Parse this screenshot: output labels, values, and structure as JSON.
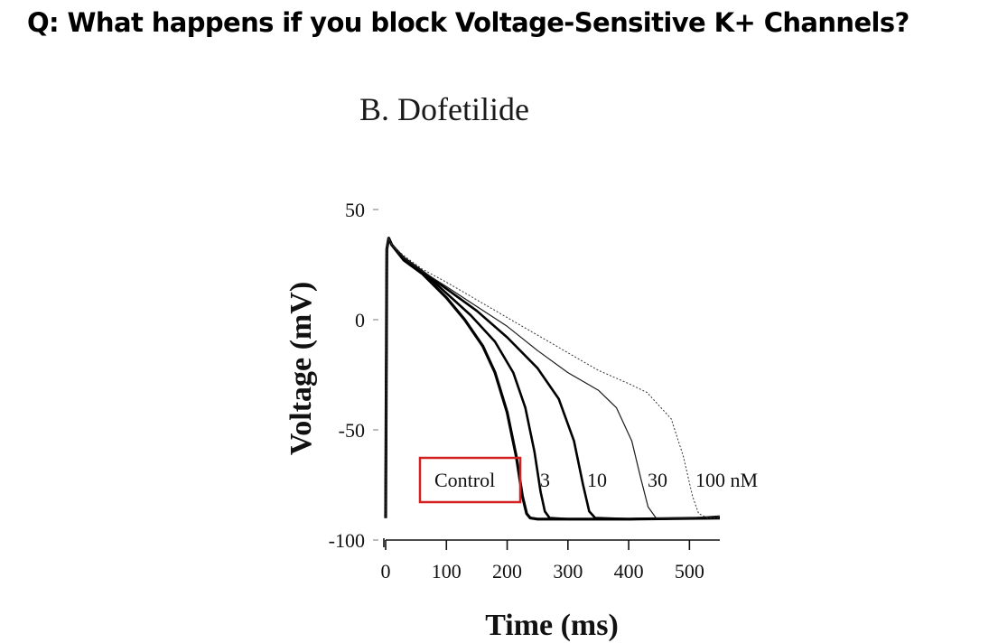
{
  "slide": {
    "question": "Q:  What happens if you block Voltage-Sensitive K+ Channels?"
  },
  "chart_data": {
    "type": "line",
    "title": "B. Dofetilide",
    "xlabel": "Time (ms)",
    "ylabel": "Voltage (mV)",
    "xlim": [
      0,
      550
    ],
    "ylim": [
      -100,
      50
    ],
    "xticks": [
      0,
      100,
      200,
      300,
      400,
      500
    ],
    "yticks": [
      50,
      0,
      -50,
      -100
    ],
    "grid": false,
    "highlight_color": "#d42020",
    "series": [
      {
        "name": "Control",
        "highlighted": true,
        "stroke": "#000000",
        "width": 3.2,
        "x": [
          0,
          2,
          5,
          10,
          30,
          60,
          100,
          130,
          160,
          180,
          200,
          215,
          225,
          232,
          238,
          250,
          300,
          400,
          550
        ],
        "y": [
          -90,
          32,
          37,
          34,
          27,
          21,
          10,
          0,
          -12,
          -24,
          -42,
          -62,
          -80,
          -88,
          -90,
          -90.5,
          -90.5,
          -90.5,
          -90
        ]
      },
      {
        "name": "3",
        "stroke": "#000000",
        "width": 2.6,
        "x": [
          0,
          2,
          5,
          10,
          30,
          60,
          100,
          140,
          180,
          210,
          230,
          245,
          255,
          262,
          270,
          300,
          400,
          550
        ],
        "y": [
          -90,
          32,
          37,
          34,
          28,
          22,
          12,
          2,
          -10,
          -24,
          -40,
          -60,
          -78,
          -87,
          -90,
          -90.5,
          -90.5,
          -90
        ]
      },
      {
        "name": "10",
        "stroke": "#000000",
        "width": 2.6,
        "x": [
          0,
          2,
          5,
          10,
          30,
          60,
          100,
          150,
          200,
          250,
          285,
          310,
          325,
          335,
          345,
          400,
          550
        ],
        "y": [
          -90,
          32,
          37,
          34,
          28,
          22,
          14,
          4,
          -8,
          -22,
          -36,
          -55,
          -75,
          -87,
          -90,
          -90.5,
          -90
        ]
      },
      {
        "name": "30",
        "stroke": "#1a1a1a",
        "width": 1.2,
        "x": [
          0,
          2,
          5,
          10,
          30,
          60,
          100,
          150,
          200,
          250,
          300,
          350,
          380,
          405,
          420,
          432,
          445,
          500,
          550
        ],
        "y": [
          -90,
          32,
          37,
          34,
          28,
          22,
          15,
          6,
          -3,
          -14,
          -24,
          -32,
          -40,
          -55,
          -72,
          -85,
          -90,
          -90,
          -89
        ]
      },
      {
        "name": "100 nM",
        "stroke": "#333333",
        "width": 1,
        "dash": "2,2",
        "x": [
          0,
          2,
          5,
          10,
          30,
          60,
          100,
          150,
          200,
          250,
          300,
          350,
          400,
          430,
          470,
          490,
          505,
          515,
          530,
          550
        ],
        "y": [
          -90,
          32,
          37,
          34,
          29,
          23,
          17,
          9,
          1,
          -7,
          -15,
          -23,
          -29,
          -33,
          -45,
          -62,
          -80,
          -88,
          -90,
          -90
        ]
      }
    ]
  }
}
